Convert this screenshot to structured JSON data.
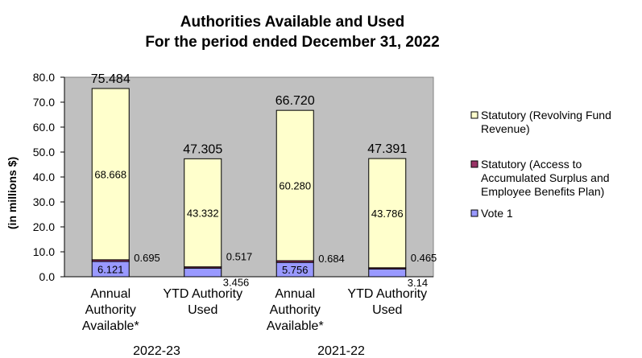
{
  "chart_data": {
    "type": "bar",
    "stacked": true,
    "title": "Authorities Available and Used",
    "subtitle": "For the period ended December 31, 2022",
    "ylabel": "(in millions $)",
    "ylim": [
      0,
      80
    ],
    "yticks": [
      "0.0",
      "10.0",
      "20.0",
      "30.0",
      "40.0",
      "50.0",
      "60.0",
      "70.0",
      "80.0"
    ],
    "categories": [
      [
        "Annual",
        "Authority",
        "Available*"
      ],
      [
        "YTD Authority",
        "Used"
      ],
      [
        "Annual",
        "Authority",
        "Available*"
      ],
      [
        "YTD Authority",
        "Used"
      ]
    ],
    "groups": [
      "2022-23",
      "2021-22"
    ],
    "totals": [
      "75.484",
      "47.305",
      "66.720",
      "47.391"
    ],
    "series": [
      {
        "name": "Vote 1",
        "color": "#9999ff",
        "values": [
          6.121,
          3.456,
          5.756,
          3.14
        ],
        "labels": [
          "6.121",
          "3.456",
          "5.756",
          "3.14"
        ]
      },
      {
        "name": "Statutory (Access to Accumulated Surplus and Employee Benefits Plan)",
        "legend_lines": [
          "Statutory (Access to",
          "Accumulated Surplus and",
          "Employee Benefits Plan)"
        ],
        "color": "#993366",
        "values": [
          0.695,
          0.517,
          0.684,
          0.465
        ],
        "labels": [
          "0.695",
          "0.517",
          "0.684",
          "0.465"
        ]
      },
      {
        "name": "Statutory (Revolving Fund Revenue)",
        "legend_lines": [
          "Statutory (Revolving Fund",
          "Revenue)"
        ],
        "color": "#ffffcc",
        "values": [
          68.668,
          43.332,
          60.28,
          43.786
        ],
        "labels": [
          "68.668",
          "43.332",
          "60.280",
          "43.786"
        ]
      }
    ],
    "plot_background": "#c0c0c0",
    "legend_position": "right",
    "grid": false
  }
}
